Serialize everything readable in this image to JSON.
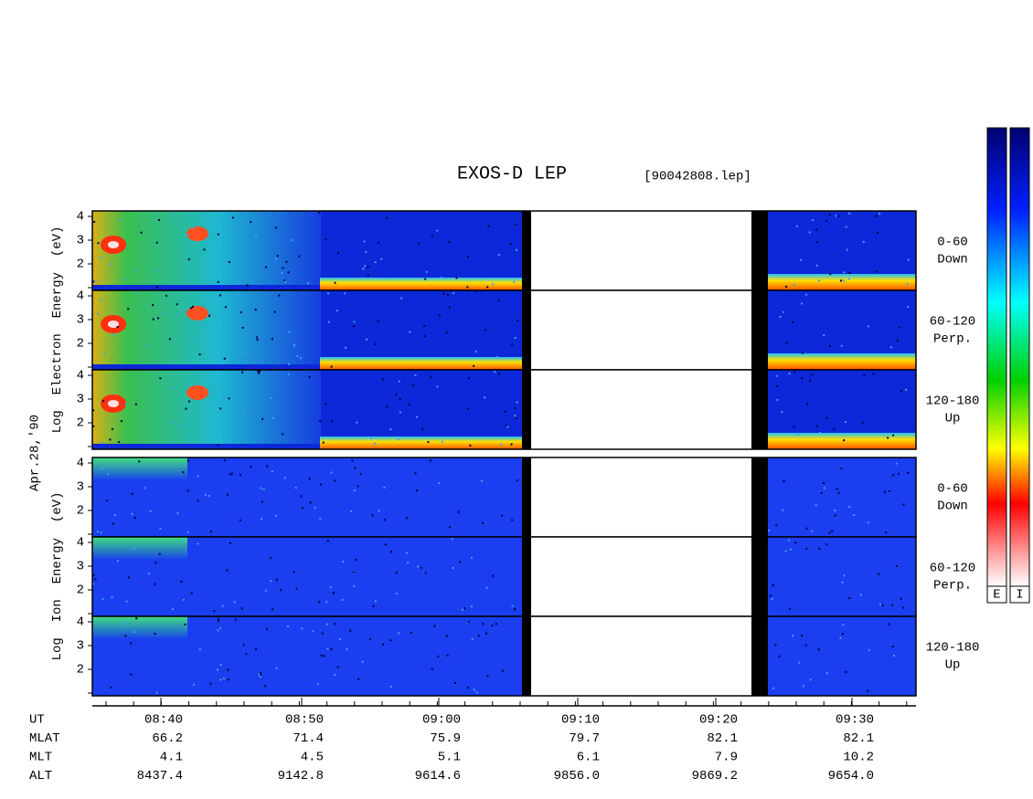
{
  "title": "EXOS-D LEP",
  "file": "[90042808.lep]",
  "date": "Apr.28,'90",
  "y_labels": [
    [
      "Log",
      "Electron",
      "Energy",
      "(eV)"
    ],
    [
      "Log",
      "Ion",
      "Energy",
      "(eV)"
    ]
  ],
  "panels": [
    {
      "species": "electron",
      "yticks": [
        "4",
        "3",
        "2"
      ],
      "label": [
        "0-60",
        "Down"
      ]
    },
    {
      "species": "electron",
      "yticks": [
        "4",
        "3",
        "2"
      ],
      "label": [
        "60-120",
        "Perp."
      ]
    },
    {
      "species": "electron",
      "yticks": [
        "4",
        "3",
        "2"
      ],
      "label": [
        "120-180",
        "Up"
      ]
    },
    {
      "species": "ion",
      "yticks": [
        "4",
        "3",
        "2"
      ],
      "label": [
        "0-60",
        "Down"
      ]
    },
    {
      "species": "ion",
      "yticks": [
        "4",
        "3",
        "2"
      ],
      "label": [
        "60-120",
        "Perp."
      ]
    },
    {
      "species": "ion",
      "yticks": [
        "4",
        "3",
        "2"
      ],
      "label": [
        "120-180",
        "Up"
      ]
    }
  ],
  "table": {
    "rows": [
      {
        "label": "UT",
        "values": [
          "08:40",
          "08:50",
          "09:00",
          "09:10",
          "09:20",
          "09:30"
        ]
      },
      {
        "label": "MLAT",
        "values": [
          "66.2",
          "71.4",
          "75.9",
          "79.7",
          "82.1",
          "82.1"
        ]
      },
      {
        "label": "MLT",
        "values": [
          "4.1",
          "4.5",
          "5.1",
          "6.1",
          "7.9",
          "10.2"
        ]
      },
      {
        "label": "ALT",
        "values": [
          "8437.4",
          "9142.8",
          "9614.6",
          "9856.0",
          "9869.2",
          "9654.0"
        ]
      }
    ]
  },
  "colorbars": [
    "E",
    "I"
  ]
}
